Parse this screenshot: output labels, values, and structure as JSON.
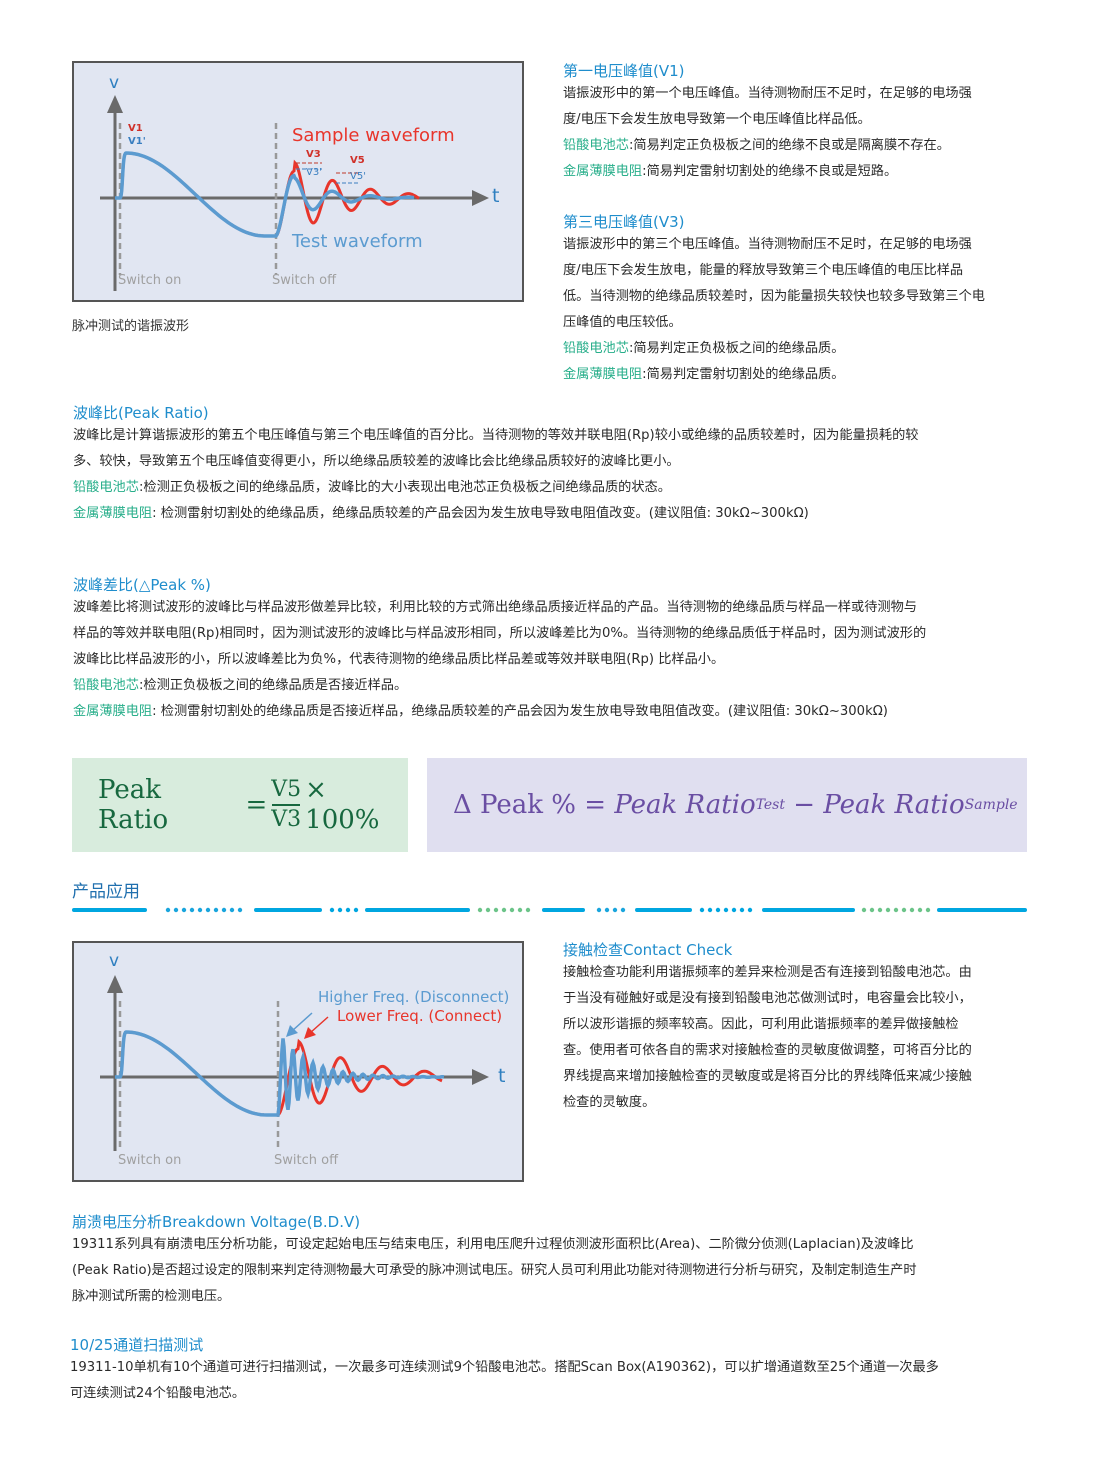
{
  "figure1": {
    "axis_v": "v",
    "axis_t": "t",
    "v1": "V1",
    "v1p": "V1'",
    "v3": "V3",
    "v3p": "V3'",
    "v5": "V5",
    "v5p": "V5'",
    "sample": "Sample waveform",
    "test": "Test waveform",
    "switch_on": "Switch on",
    "switch_off": "Switch off",
    "caption": "脉冲测试的谐振波形"
  },
  "v1_section": {
    "title": "第一电压峰值(V1)",
    "lines": [
      "谐振波形中的第一个电压峰值。当待测物耐压不足时，在足够的电场强",
      "度/电压下会发生放电导致第一个电压峰值比样品低。"
    ],
    "items": [
      {
        "label": "铅酸电池芯",
        "text": ":简易判定正负极板之间的绝缘不良或是隔离膜不存在。"
      },
      {
        "label": "金属薄膜电阻",
        "text": ":简易判定雷射切割处的绝缘不良或是短路。"
      }
    ]
  },
  "v3_section": {
    "title": "第三电压峰值(V3)",
    "lines": [
      "谐振波形中的第三个电压峰值。当待测物耐压不足时，在足够的电场强",
      "度/电压下会发生放电，能量的释放导致第三个电压峰值的电压比样品",
      "低。当待测物的绝缘品质较差时，因为能量损失较快也较多导致第三个电",
      "压峰值的电压较低。"
    ],
    "items": [
      {
        "label": "铅酸电池芯",
        "text": ":简易判定正负极板之间的绝缘品质。"
      },
      {
        "label": "金属薄膜电阻",
        "text": ":简易判定雷射切割处的绝缘品质。"
      }
    ]
  },
  "peak_ratio": {
    "title": "波峰比(Peak Ratio)",
    "lines": [
      "波峰比是计算谐振波形的第五个电压峰值与第三个电压峰值的百分比。当待测物的等效并联电阻(Rp)较小或绝缘的品质较差时，因为能量损耗的较",
      "多、较快，导致第五个电压峰值变得更小，所以绝缘品质较差的波峰比会比绝缘品质较好的波峰比更小。"
    ],
    "items": [
      {
        "label": "铅酸电池芯",
        "text": ":检测正负极板之间的绝缘品质，波峰比的大小表现出电池芯正负极板之间绝缘品质的状态。"
      },
      {
        "label": "金属薄膜电阻",
        "text": ": 检测雷射切割处的绝缘品质，绝缘品质较差的产品会因为发生放电导致电阻值改变。(建议阻值: 30kΩ~300kΩ)"
      }
    ]
  },
  "delta_peak": {
    "title": "波峰差比(△Peak %)",
    "lines": [
      "波峰差比将测试波形的波峰比与样品波形做差异比较，利用比较的方式筛出绝缘品质接近样品的产品。当待测物的绝缘品质与样品一样或待测物与",
      "样品的等效并联电阻(Rp)相同时，因为测试波形的波峰比与样品波形相同，所以波峰差比为0%。当待测物的绝缘品质低于样品时，因为测试波形的",
      "波峰比比样品波形的小，所以波峰差比为负%，代表待测物的绝缘品质比样品差或等效并联电阻(Rp) 比样品小。"
    ],
    "items": [
      {
        "label": "铅酸电池芯",
        "text": ":检测正负极板之间的绝缘品质是否接近样品。"
      },
      {
        "label": "金属薄膜电阻",
        "text": ": 检测雷射切割处的绝缘品质是否接近样品，绝缘品质较差的产品会因为发生放电导致电阻值改变。(建议阻值: 30kΩ~300kΩ)"
      }
    ]
  },
  "formula1": {
    "lhs": "Peak Ratio",
    "eq": "=",
    "num": "V5",
    "den": "V3",
    "times": "× 100%"
  },
  "formula2": {
    "lhs": "Δ Peak %",
    "eq": "=",
    "term1": "Peak Ratio",
    "sub1": "Test",
    "minus": "−",
    "term2": "Peak Ratio",
    "sub2": "Sample"
  },
  "applications": {
    "title": "产品应用"
  },
  "figure2": {
    "axis_v": "v",
    "axis_t": "t",
    "higher": "Higher Freq. (Disconnect)",
    "lower": "Lower Freq. (Connect)",
    "switch_on": "Switch on",
    "switch_off": "Switch off"
  },
  "contact_check": {
    "title": "接触检查Contact Check",
    "lines": [
      "接触检查功能利用谐振频率的差异来检测是否有连接到铅酸电池芯。由",
      "于当没有碰触好或是没有接到铅酸电池芯做测试时，电容量会比较小，",
      "所以波形谐振的频率较高。因此，可利用此谐振频率的差异做接触检",
      "查。使用者可依各自的需求对接触检查的灵敏度做调整，可将百分比的",
      "界线提高来增加接触检查的灵敏度或是将百分比的界线降低来减少接触",
      "检查的灵敏度。"
    ]
  },
  "bdv": {
    "title": "崩溃电压分析Breakdown Voltage(B.D.V)",
    "lines": [
      "19311系列具有崩溃电压分析功能，可设定起始电压与结束电压，利用电压爬升过程侦测波形面积比(Area)、二阶微分侦测(Laplacian)及波峰比",
      "(Peak Ratio)是否超过设定的限制来判定待测物最大可承受的脉冲测试电压。研究人员可利用此功能对待测物进行分析与研究，及制定制造生产时",
      "脉冲测试所需的检测电压。"
    ]
  },
  "scan": {
    "title": "10/25通道扫描测试",
    "lines": [
      "19311-10单机有10个通道可进行扫描测试，一次最多可连续测试9个铅酸电池芯。搭配Scan Box(A190362)，可以扩增通道数至25个通道一次最多",
      "可连续测试24个铅酸电池芯。"
    ]
  },
  "colors": {
    "heading": "#1f8dcc",
    "label": "#27ae8a",
    "sample": "#e8352b",
    "test": "#5b9bd0",
    "axis": "#666666"
  }
}
